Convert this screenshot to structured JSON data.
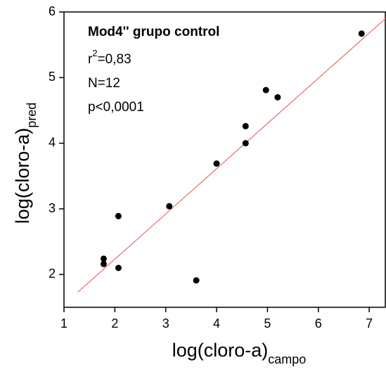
{
  "chart_data": {
    "type": "scatter",
    "annotation": {
      "title": "Mod4'' grupo control",
      "r_base": "r",
      "r_sup": "2",
      "r_rest": "=0,83",
      "n": "N=12",
      "p": "p<0,0001"
    },
    "xlabel": {
      "text": "log(cloro-a)",
      "sub": "campo"
    },
    "ylabel": {
      "text": "log(cloro-a)",
      "sub": "pred"
    },
    "x": [
      6.85,
      4.97,
      5.2,
      4.57,
      4.57,
      4.0,
      3.07,
      2.07,
      1.78,
      1.78,
      2.07,
      3.6
    ],
    "values": [
      5.67,
      4.81,
      4.7,
      4.26,
      4.0,
      3.69,
      3.04,
      2.89,
      2.24,
      2.16,
      2.1,
      1.91
    ],
    "color": "#000000",
    "fit_line": {
      "x": [
        1.27,
        7.35
      ],
      "y": [
        1.73,
        5.92
      ],
      "color": "#e85050"
    },
    "xlim": [
      1,
      7.33
    ],
    "xticks": [
      1,
      2,
      3,
      4,
      5,
      6,
      7
    ],
    "ylim": [
      1.5,
      6
    ],
    "yticks": [
      2,
      3,
      4,
      5,
      6
    ]
  }
}
